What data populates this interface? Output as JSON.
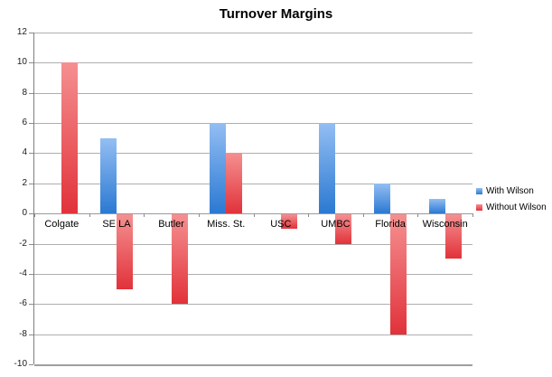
{
  "chart_data": {
    "type": "bar",
    "title": "Turnover Margins",
    "categories": [
      "Colgate",
      "SE LA",
      "Butler",
      "Miss. St.",
      "USC",
      "UMBC",
      "Florida",
      "Wisconsin"
    ],
    "series": [
      {
        "name": "With Wilson",
        "values": [
          0,
          5,
          0,
          6,
          0,
          6,
          2,
          1
        ],
        "color_top": "#93bef3",
        "color_bottom": "#2b79d2"
      },
      {
        "name": "Without Wilson",
        "values": [
          10,
          -5,
          -6,
          4,
          -1,
          -2,
          -8,
          -3
        ],
        "color_top": "#f59091",
        "color_bottom": "#e1323a"
      }
    ],
    "xlabel": "",
    "ylabel": "",
    "ylim": [
      -10,
      12
    ],
    "yticks": [
      12,
      10,
      8,
      6,
      4,
      2,
      0,
      -2,
      -4,
      -6,
      -8,
      -10
    ],
    "grid": true,
    "legend_position": "right",
    "colors": {
      "gridline": "#aeaeae",
      "axis": "#7f7f7f",
      "tick": "#8c8c8c",
      "text": "#000000"
    }
  }
}
